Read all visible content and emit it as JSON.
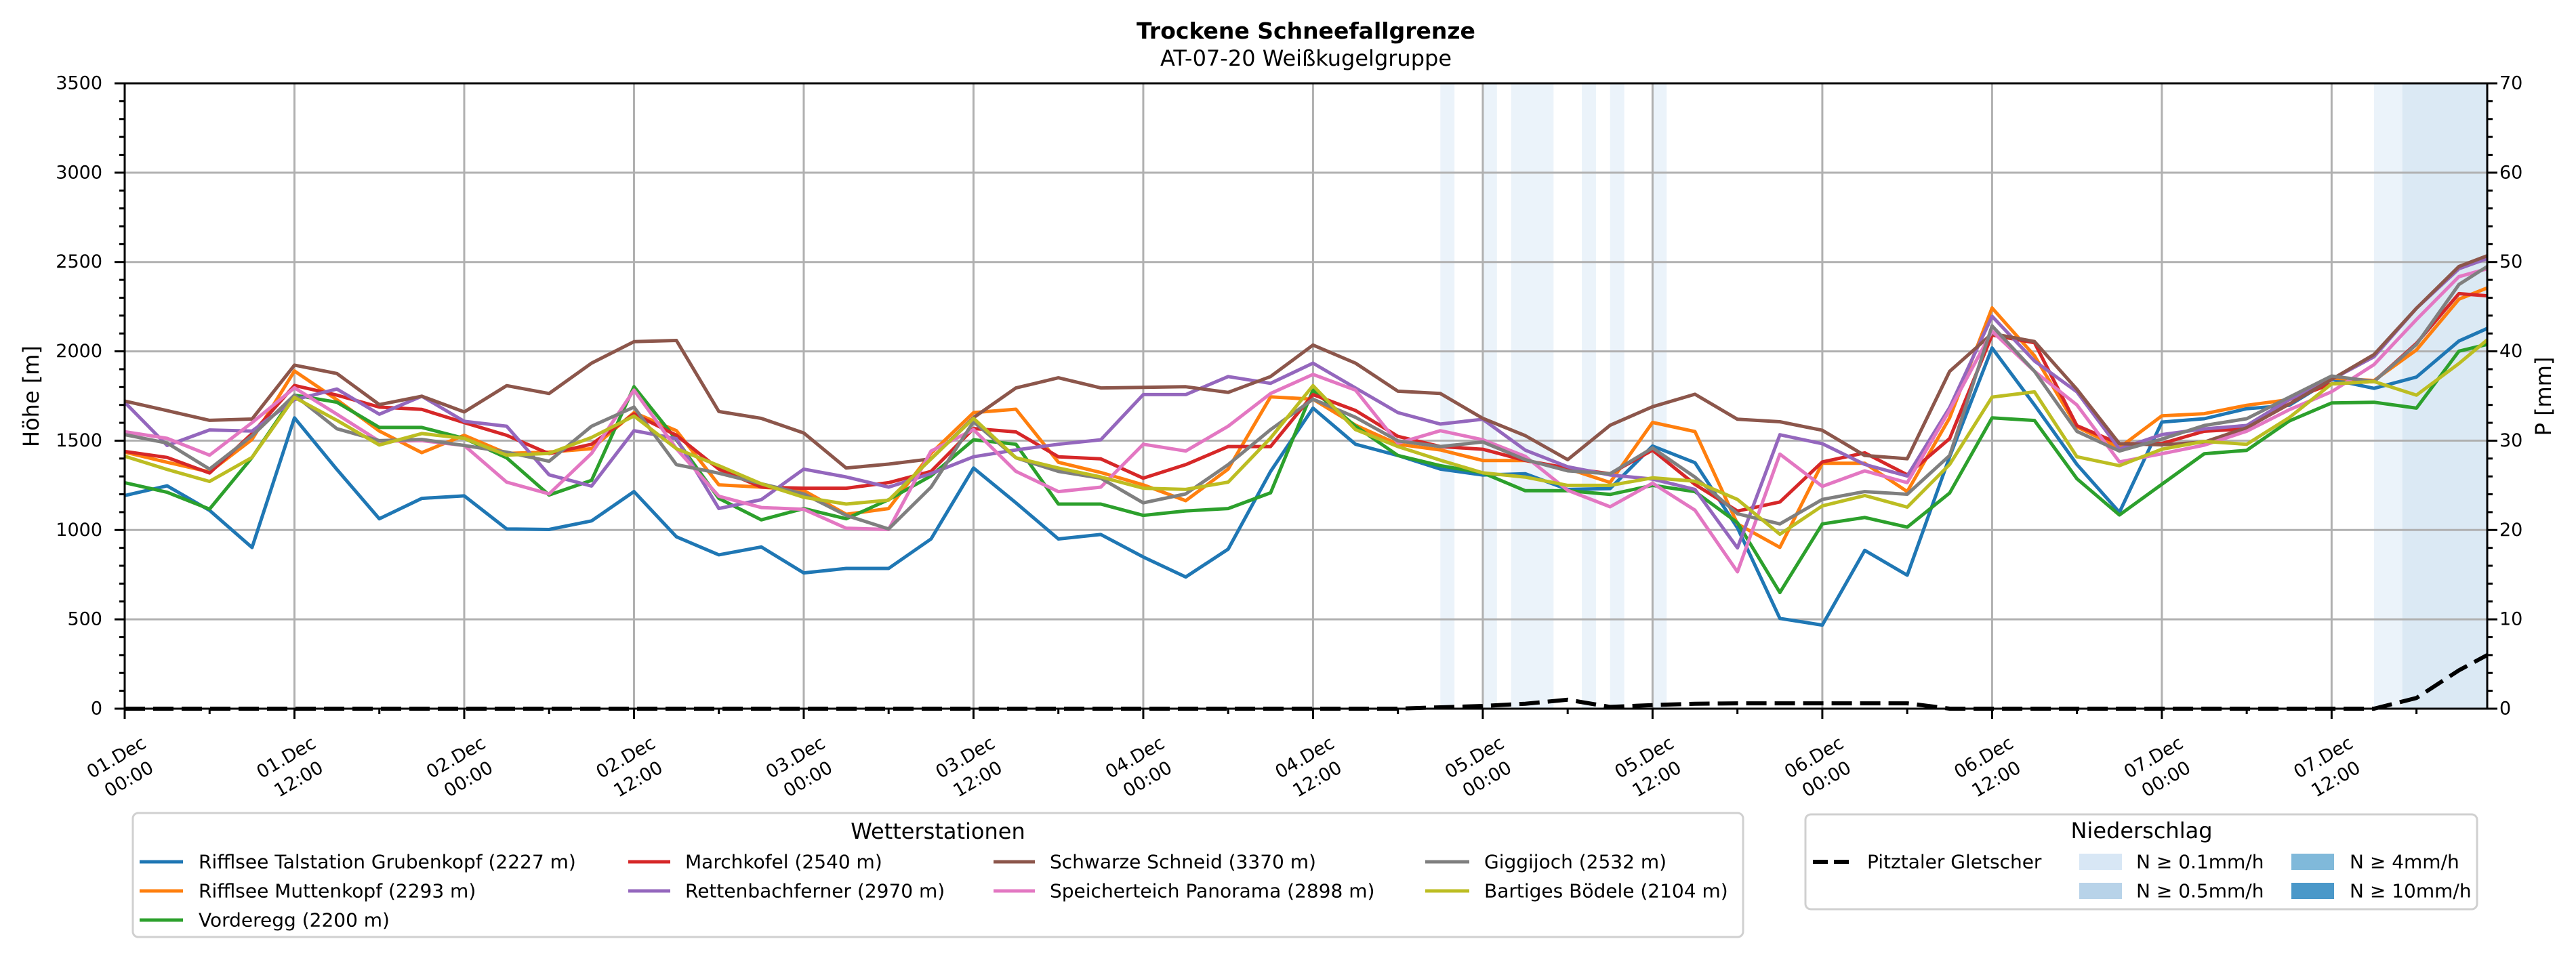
{
  "chart_data": {
    "type": "line",
    "title": "Trockene Schneefallgrenze",
    "subtitle": "AT-07-20 Weißkugelgruppe",
    "xlabel": "",
    "ylabel": "Höhe [m]",
    "y2label": "P [mm]",
    "x_unit": "hours since 01.Dec 00:00",
    "xlim": [
      0,
      167
    ],
    "ylim": [
      0,
      3500
    ],
    "y2lim": [
      0,
      70
    ],
    "grid": true,
    "x_ticks": [
      0,
      12,
      24,
      36,
      48,
      60,
      72,
      84,
      96,
      108,
      120,
      132,
      144,
      156
    ],
    "x_tick_labels": [
      [
        "01.Dec",
        "00:00"
      ],
      [
        "01.Dec",
        "12:00"
      ],
      [
        "02.Dec",
        "00:00"
      ],
      [
        "02.Dec",
        "12:00"
      ],
      [
        "03.Dec",
        "00:00"
      ],
      [
        "03.Dec",
        "12:00"
      ],
      [
        "04.Dec",
        "00:00"
      ],
      [
        "04.Dec",
        "12:00"
      ],
      [
        "05.Dec",
        "00:00"
      ],
      [
        "05.Dec",
        "12:00"
      ],
      [
        "06.Dec",
        "00:00"
      ],
      [
        "06.Dec",
        "12:00"
      ],
      [
        "07.Dec",
        "00:00"
      ],
      [
        "07.Dec",
        "12:00"
      ]
    ],
    "y_ticks": [
      0,
      500,
      1000,
      1500,
      2000,
      2500,
      3000,
      3500
    ],
    "y2_ticks": [
      0,
      10,
      20,
      30,
      40,
      50,
      60,
      70
    ],
    "x": [
      0,
      3,
      6,
      9,
      12,
      15,
      18,
      21,
      24,
      27,
      30,
      33,
      36,
      39,
      42,
      45,
      48,
      51,
      54,
      57,
      60,
      63,
      66,
      69,
      72,
      75,
      78,
      81,
      84,
      87,
      90,
      93,
      96,
      99,
      102,
      105,
      108,
      111,
      114,
      117,
      120,
      123,
      126,
      129,
      132,
      135,
      138,
      141,
      144,
      147,
      150,
      153,
      156,
      159,
      162,
      165,
      167
    ],
    "series": [
      {
        "name": "Rifflsee Talstation Grubenkopf (2227 m)",
        "color": "#1f77b4",
        "values": [
          1193,
          1247,
          1110,
          902,
          1628,
          1339,
          1063,
          1177,
          1191,
          1006,
          1003,
          1051,
          1215,
          962,
          861,
          905,
          760,
          785,
          785,
          950,
          1347,
          1152,
          950,
          975,
          849,
          737,
          893,
          1328,
          1682,
          1480,
          1417,
          1341,
          1308,
          1315,
          1227,
          1232,
          1470,
          1377,
          1012,
          505,
          468,
          886,
          747,
          1410,
          2019,
          1700,
          1367,
          1099,
          1604,
          1623,
          1679,
          1698,
          1843,
          1793,
          1856,
          2058,
          2128
        ]
      },
      {
        "name": "Rifflsee Muttenkopf (2293 m)",
        "color": "#ff7f0e",
        "values": [
          1436,
          1379,
          1325,
          1507,
          1890,
          1729,
          1554,
          1433,
          1530,
          1429,
          1436,
          1455,
          1657,
          1556,
          1253,
          1240,
          1221,
          1088,
          1120,
          1429,
          1657,
          1676,
          1379,
          1322,
          1253,
          1164,
          1341,
          1745,
          1732,
          1587,
          1480,
          1448,
          1389,
          1389,
          1343,
          1266,
          1602,
          1551,
          1034,
          903,
          1374,
          1374,
          1215,
          1628,
          2243,
          1975,
          1577,
          1461,
          1639,
          1651,
          1698,
          1730,
          1850,
          1837,
          2008,
          2292,
          2355
        ]
      },
      {
        "name": "Vorderegg (2200 m)",
        "color": "#2ca02c",
        "values": [
          1265,
          1211,
          1117,
          1406,
          1755,
          1715,
          1574,
          1574,
          1513,
          1404,
          1196,
          1278,
          1802,
          1505,
          1177,
          1057,
          1120,
          1063,
          1170,
          1303,
          1505,
          1480,
          1145,
          1145,
          1082,
          1107,
          1120,
          1208,
          1783,
          1581,
          1417,
          1360,
          1320,
          1220,
          1220,
          1199,
          1250,
          1215,
          1041,
          650,
          1034,
          1070,
          1016,
          1207,
          1628,
          1613,
          1287,
          1084,
          1256,
          1427,
          1446,
          1610,
          1711,
          1715,
          1682,
          2001,
          2039
        ]
      },
      {
        "name": "Marchkofel (2540 m)",
        "color": "#d62728",
        "values": [
          1440,
          1406,
          1319,
          1540,
          1809,
          1755,
          1688,
          1675,
          1601,
          1530,
          1427,
          1480,
          1650,
          1530,
          1341,
          1240,
          1234,
          1234,
          1265,
          1328,
          1568,
          1549,
          1410,
          1398,
          1290,
          1366,
          1467,
          1467,
          1758,
          1669,
          1524,
          1467,
          1452,
          1389,
          1347,
          1315,
          1447,
          1255,
          1106,
          1157,
          1381,
          1432,
          1309,
          1512,
          2091,
          2048,
          1584,
          1483,
          1484,
          1553,
          1566,
          1730,
          1818,
          1831,
          2045,
          2323,
          2311
        ]
      },
      {
        "name": "Rettenbachferner (2970 m)",
        "color": "#9467bd",
        "values": [
          1715,
          1473,
          1560,
          1554,
          1729,
          1789,
          1648,
          1749,
          1608,
          1581,
          1309,
          1246,
          1556,
          1511,
          1120,
          1170,
          1341,
          1297,
          1240,
          1316,
          1410,
          1448,
          1480,
          1505,
          1758,
          1758,
          1859,
          1821,
          1934,
          1795,
          1657,
          1593,
          1620,
          1447,
          1354,
          1308,
          1285,
          1227,
          900,
          1533,
          1483,
          1367,
          1302,
          1686,
          2196,
          1946,
          1773,
          1454,
          1534,
          1566,
          1585,
          1730,
          1843,
          1970,
          2241,
          2462,
          2519
        ]
      },
      {
        "name": "Schwarze Schneid (3370 m)",
        "color": "#8c564b",
        "values": [
          1722,
          1668,
          1614,
          1621,
          1923,
          1876,
          1702,
          1749,
          1661,
          1808,
          1764,
          1934,
          2054,
          2061,
          1663,
          1625,
          1543,
          1347,
          1369,
          1398,
          1629,
          1795,
          1852,
          1795,
          1798,
          1802,
          1770,
          1859,
          2035,
          1934,
          1777,
          1764,
          1625,
          1528,
          1394,
          1586,
          1690,
          1760,
          1620,
          1606,
          1558,
          1417,
          1399,
          1888,
          2099,
          2055,
          1787,
          1483,
          1477,
          1492,
          1572,
          1705,
          1843,
          1982,
          2241,
          2475,
          2535
        ]
      },
      {
        "name": "Speicherteich Panorama (2898 m)",
        "color": "#e377c2",
        "values": [
          1550,
          1513,
          1419,
          1601,
          1796,
          1648,
          1497,
          1500,
          1473,
          1268,
          1202,
          1429,
          1783,
          1455,
          1189,
          1126,
          1116,
          1010,
          1003,
          1442,
          1562,
          1328,
          1215,
          1240,
          1480,
          1442,
          1581,
          1764,
          1871,
          1783,
          1486,
          1556,
          1505,
          1412,
          1222,
          1130,
          1262,
          1111,
          766,
          1425,
          1244,
          1331,
          1265,
          1671,
          2113,
          1888,
          1700,
          1381,
          1427,
          1475,
          1553,
          1673,
          1774,
          1926,
          2178,
          2418,
          2462
        ]
      },
      {
        "name": "Giggijoch (2532 m)",
        "color": "#7f7f7f",
        "values": [
          1534,
          1487,
          1341,
          1527,
          1755,
          1567,
          1500,
          1507,
          1473,
          1436,
          1385,
          1581,
          1688,
          1366,
          1318,
          1259,
          1202,
          1082,
          1006,
          1240,
          1606,
          1404,
          1328,
          1290,
          1152,
          1202,
          1366,
          1562,
          1732,
          1631,
          1499,
          1467,
          1493,
          1394,
          1331,
          1315,
          1459,
          1296,
          1091,
          1034,
          1171,
          1215,
          1200,
          1417,
          2142,
          1888,
          1552,
          1442,
          1509,
          1585,
          1623,
          1743,
          1862,
          1831,
          2039,
          2374,
          2475
        ]
      },
      {
        "name": "Bartiges Bödele (2104 m)",
        "color": "#bcbd22",
        "values": [
          1413,
          1339,
          1272,
          1406,
          1742,
          1614,
          1476,
          1540,
          1513,
          1419,
          1429,
          1518,
          1638,
          1455,
          1360,
          1259,
          1183,
          1145,
          1167,
          1398,
          1625,
          1404,
          1347,
          1297,
          1234,
          1227,
          1268,
          1515,
          1808,
          1562,
          1467,
          1391,
          1320,
          1296,
          1250,
          1250,
          1292,
          1273,
          1171,
          976,
          1135,
          1193,
          1128,
          1367,
          1744,
          1773,
          1410,
          1360,
          1452,
          1496,
          1480,
          1629,
          1818,
          1831,
          1755,
          1932,
          2064
        ]
      }
    ],
    "precipitation": {
      "name": "Pitztaler Gletscher",
      "axis": "right",
      "style": "dashed",
      "color": "#000000",
      "values": [
        0,
        0,
        0,
        0,
        0,
        0,
        0,
        0,
        0,
        0,
        0,
        0,
        0,
        0,
        0,
        0,
        0,
        0,
        0,
        0,
        0,
        0,
        0,
        0,
        0,
        0,
        0,
        0,
        0,
        0,
        0,
        0.15,
        0.3,
        0.55,
        1.0,
        0.2,
        0.4,
        0.55,
        0.6,
        0.6,
        0.6,
        0.6,
        0.6,
        0,
        0,
        0,
        0,
        0,
        0,
        0,
        0,
        0,
        0,
        0,
        1.2,
        4.3,
        6.0
      ]
    },
    "precip_levels": [
      {
        "label": "N ≥ 0.1mm/h",
        "color": "#d8e7f5"
      },
      {
        "label": "N ≥ 0.5mm/h",
        "color": "#b8d3e9"
      },
      {
        "label": "N ≥ 4mm/h",
        "color": "#80b9da"
      },
      {
        "label": "N ≥ 10mm/h",
        "color": "#4a98c9"
      }
    ],
    "precip_bands": [
      {
        "start": 93,
        "end": 94,
        "level": 0
      },
      {
        "start": 96,
        "end": 97,
        "level": 0
      },
      {
        "start": 98,
        "end": 101,
        "level": 0
      },
      {
        "start": 103,
        "end": 104,
        "level": 0
      },
      {
        "start": 105,
        "end": 106,
        "level": 0
      },
      {
        "start": 108,
        "end": 109,
        "level": 0
      },
      {
        "start": 159,
        "end": 161,
        "level": 0
      },
      {
        "start": 161,
        "end": 167,
        "level": 1
      }
    ],
    "legends": {
      "stations": {
        "title": "Wetterstationen",
        "placement": "bottom-left"
      },
      "precipitation": {
        "title": "Niederschlag",
        "placement": "bottom-right"
      }
    }
  }
}
